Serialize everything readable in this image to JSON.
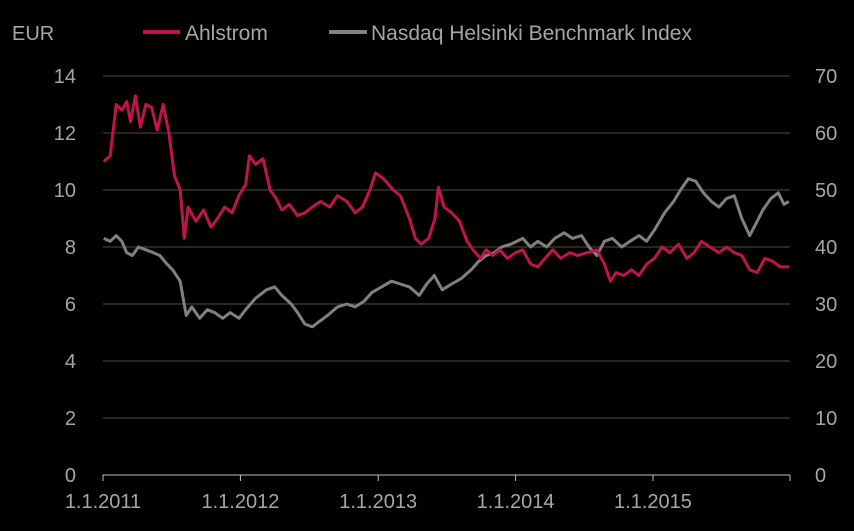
{
  "chart_data": {
    "type": "line",
    "title": "",
    "ylabel": "EUR",
    "xlabel": "",
    "grid": true,
    "legend_position": "top",
    "x_tick_labels": [
      "1.1.2011",
      "1.1.2012",
      "1.1.2013",
      "1.1.2014",
      "1.1.2015"
    ],
    "y_left": {
      "lim": [
        0,
        14
      ],
      "ticks": [
        "0",
        "2",
        "4",
        "6",
        "8",
        "10",
        "12",
        "14"
      ]
    },
    "y_right": {
      "lim": [
        0,
        70
      ],
      "ticks": [
        "0",
        "10",
        "20",
        "30",
        "40",
        "50",
        "60",
        "70"
      ]
    },
    "x_range": [
      "2011-01-01",
      "2015-12-31"
    ],
    "series": [
      {
        "name": "Ahlstrom",
        "axis": "left",
        "color": "#c0144c",
        "points": [
          [
            "2011-01-03",
            11.0
          ],
          [
            "2011-01-20",
            11.2
          ],
          [
            "2011-02-05",
            13.0
          ],
          [
            "2011-02-20",
            12.8
          ],
          [
            "2011-03-05",
            13.1
          ],
          [
            "2011-03-15",
            12.4
          ],
          [
            "2011-03-28",
            13.3
          ],
          [
            "2011-04-10",
            12.2
          ],
          [
            "2011-04-25",
            13.0
          ],
          [
            "2011-05-10",
            12.9
          ],
          [
            "2011-05-25",
            12.1
          ],
          [
            "2011-06-10",
            13.0
          ],
          [
            "2011-06-25",
            12.0
          ],
          [
            "2011-07-10",
            10.5
          ],
          [
            "2011-07-25",
            10.0
          ],
          [
            "2011-08-05",
            8.3
          ],
          [
            "2011-08-15",
            9.4
          ],
          [
            "2011-09-05",
            8.9
          ],
          [
            "2011-09-25",
            9.3
          ],
          [
            "2011-10-15",
            8.7
          ],
          [
            "2011-11-01",
            9.0
          ],
          [
            "2011-11-20",
            9.4
          ],
          [
            "2011-12-10",
            9.2
          ],
          [
            "2011-12-28",
            9.8
          ],
          [
            "2012-01-15",
            10.2
          ],
          [
            "2012-01-25",
            11.2
          ],
          [
            "2012-02-10",
            10.9
          ],
          [
            "2012-03-01",
            11.1
          ],
          [
            "2012-03-20",
            10.0
          ],
          [
            "2012-04-05",
            9.7
          ],
          [
            "2012-04-20",
            9.3
          ],
          [
            "2012-05-10",
            9.5
          ],
          [
            "2012-06-01",
            9.1
          ],
          [
            "2012-06-20",
            9.2
          ],
          [
            "2012-07-10",
            9.4
          ],
          [
            "2012-08-01",
            9.6
          ],
          [
            "2012-08-25",
            9.4
          ],
          [
            "2012-09-15",
            9.8
          ],
          [
            "2012-10-10",
            9.6
          ],
          [
            "2012-11-01",
            9.2
          ],
          [
            "2012-11-20",
            9.4
          ],
          [
            "2012-12-10",
            10.0
          ],
          [
            "2012-12-25",
            10.6
          ],
          [
            "2013-01-15",
            10.4
          ],
          [
            "2013-02-10",
            10.0
          ],
          [
            "2013-03-01",
            9.8
          ],
          [
            "2013-03-25",
            9.0
          ],
          [
            "2013-04-10",
            8.3
          ],
          [
            "2013-04-25",
            8.1
          ],
          [
            "2013-05-15",
            8.3
          ],
          [
            "2013-06-01",
            9.0
          ],
          [
            "2013-06-10",
            10.1
          ],
          [
            "2013-06-25",
            9.4
          ],
          [
            "2013-07-15",
            9.2
          ],
          [
            "2013-08-05",
            8.9
          ],
          [
            "2013-08-25",
            8.2
          ],
          [
            "2013-09-10",
            7.9
          ],
          [
            "2013-09-30",
            7.6
          ],
          [
            "2013-10-15",
            7.9
          ],
          [
            "2013-11-01",
            7.7
          ],
          [
            "2013-11-20",
            7.9
          ],
          [
            "2013-12-10",
            7.6
          ],
          [
            "2014-01-01",
            7.8
          ],
          [
            "2014-01-20",
            7.9
          ],
          [
            "2014-02-10",
            7.4
          ],
          [
            "2014-03-01",
            7.3
          ],
          [
            "2014-03-20",
            7.6
          ],
          [
            "2014-04-10",
            7.9
          ],
          [
            "2014-05-01",
            7.6
          ],
          [
            "2014-05-25",
            7.8
          ],
          [
            "2014-06-15",
            7.7
          ],
          [
            "2014-07-10",
            7.8
          ],
          [
            "2014-08-05",
            7.9
          ],
          [
            "2014-08-25",
            7.4
          ],
          [
            "2014-09-10",
            6.8
          ],
          [
            "2014-09-25",
            7.1
          ],
          [
            "2014-10-15",
            7.0
          ],
          [
            "2014-11-05",
            7.2
          ],
          [
            "2014-11-25",
            7.0
          ],
          [
            "2014-12-15",
            7.4
          ],
          [
            "2015-01-05",
            7.6
          ],
          [
            "2015-01-25",
            8.0
          ],
          [
            "2015-02-15",
            7.8
          ],
          [
            "2015-03-10",
            8.1
          ],
          [
            "2015-04-01",
            7.6
          ],
          [
            "2015-04-20",
            7.8
          ],
          [
            "2015-05-10",
            8.2
          ],
          [
            "2015-06-01",
            8.0
          ],
          [
            "2015-06-25",
            7.8
          ],
          [
            "2015-07-15",
            8.0
          ],
          [
            "2015-08-05",
            7.8
          ],
          [
            "2015-08-25",
            7.7
          ],
          [
            "2015-09-15",
            7.2
          ],
          [
            "2015-10-05",
            7.1
          ],
          [
            "2015-10-25",
            7.6
          ],
          [
            "2015-11-15",
            7.5
          ],
          [
            "2015-12-05",
            7.3
          ],
          [
            "2015-12-28",
            7.3
          ]
        ]
      },
      {
        "name": "Nasdaq Helsinki Benchmark Index",
        "axis": "right",
        "color": "#808080",
        "points": [
          [
            "2011-01-03",
            41.5
          ],
          [
            "2011-01-20",
            41.0
          ],
          [
            "2011-02-05",
            42.0
          ],
          [
            "2011-02-20",
            41.0
          ],
          [
            "2011-03-05",
            39.0
          ],
          [
            "2011-03-20",
            38.5
          ],
          [
            "2011-04-05",
            40.0
          ],
          [
            "2011-04-25",
            39.5
          ],
          [
            "2011-05-15",
            39.0
          ],
          [
            "2011-06-01",
            38.5
          ],
          [
            "2011-06-20",
            37.0
          ],
          [
            "2011-07-05",
            36.0
          ],
          [
            "2011-07-25",
            34.0
          ],
          [
            "2011-08-10",
            28.0
          ],
          [
            "2011-08-25",
            29.5
          ],
          [
            "2011-09-15",
            27.5
          ],
          [
            "2011-10-05",
            29.0
          ],
          [
            "2011-10-25",
            28.5
          ],
          [
            "2011-11-15",
            27.5
          ],
          [
            "2011-12-05",
            28.5
          ],
          [
            "2011-12-28",
            27.5
          ],
          [
            "2012-01-15",
            29.0
          ],
          [
            "2012-02-10",
            31.0
          ],
          [
            "2012-03-10",
            32.5
          ],
          [
            "2012-04-01",
            33.0
          ],
          [
            "2012-04-20",
            31.5
          ],
          [
            "2012-05-15",
            30.0
          ],
          [
            "2012-06-01",
            28.5
          ],
          [
            "2012-06-20",
            26.5
          ],
          [
            "2012-07-10",
            26.0
          ],
          [
            "2012-07-30",
            27.0
          ],
          [
            "2012-08-20",
            28.0
          ],
          [
            "2012-09-15",
            29.5
          ],
          [
            "2012-10-10",
            30.0
          ],
          [
            "2012-11-01",
            29.5
          ],
          [
            "2012-11-25",
            30.5
          ],
          [
            "2012-12-15",
            32.0
          ],
          [
            "2013-01-10",
            33.0
          ],
          [
            "2013-02-05",
            34.0
          ],
          [
            "2013-03-01",
            33.5
          ],
          [
            "2013-03-25",
            33.0
          ],
          [
            "2013-04-20",
            31.5
          ],
          [
            "2013-05-10",
            33.5
          ],
          [
            "2013-05-30",
            35.0
          ],
          [
            "2013-06-20",
            32.5
          ],
          [
            "2013-07-15",
            33.5
          ],
          [
            "2013-08-10",
            34.5
          ],
          [
            "2013-09-05",
            36.0
          ],
          [
            "2013-09-25",
            37.5
          ],
          [
            "2013-10-15",
            38.5
          ],
          [
            "2013-11-05",
            39.0
          ],
          [
            "2013-11-25",
            40.0
          ],
          [
            "2013-12-20",
            40.5
          ],
          [
            "2014-01-20",
            41.5
          ],
          [
            "2014-02-10",
            40.0
          ],
          [
            "2014-03-01",
            41.0
          ],
          [
            "2014-03-25",
            40.0
          ],
          [
            "2014-04-15",
            41.5
          ],
          [
            "2014-05-10",
            42.5
          ],
          [
            "2014-06-01",
            41.5
          ],
          [
            "2014-06-25",
            42.0
          ],
          [
            "2014-07-15",
            40.0
          ],
          [
            "2014-08-05",
            38.5
          ],
          [
            "2014-08-25",
            41.0
          ],
          [
            "2014-09-15",
            41.5
          ],
          [
            "2014-10-10",
            40.0
          ],
          [
            "2014-11-01",
            41.0
          ],
          [
            "2014-11-25",
            42.0
          ],
          [
            "2014-12-15",
            41.0
          ],
          [
            "2015-01-05",
            43.0
          ],
          [
            "2015-02-01",
            46.0
          ],
          [
            "2015-02-25",
            48.0
          ],
          [
            "2015-03-15",
            50.0
          ],
          [
            "2015-04-05",
            52.0
          ],
          [
            "2015-04-25",
            51.5
          ],
          [
            "2015-05-15",
            49.5
          ],
          [
            "2015-06-05",
            48.0
          ],
          [
            "2015-06-25",
            47.0
          ],
          [
            "2015-07-15",
            48.5
          ],
          [
            "2015-08-05",
            49.0
          ],
          [
            "2015-08-25",
            45.0
          ],
          [
            "2015-09-15",
            42.0
          ],
          [
            "2015-10-01",
            44.0
          ],
          [
            "2015-10-20",
            46.5
          ],
          [
            "2015-11-10",
            48.5
          ],
          [
            "2015-11-30",
            49.5
          ],
          [
            "2015-12-15",
            47.5
          ],
          [
            "2015-12-28",
            48.0
          ]
        ]
      }
    ]
  }
}
